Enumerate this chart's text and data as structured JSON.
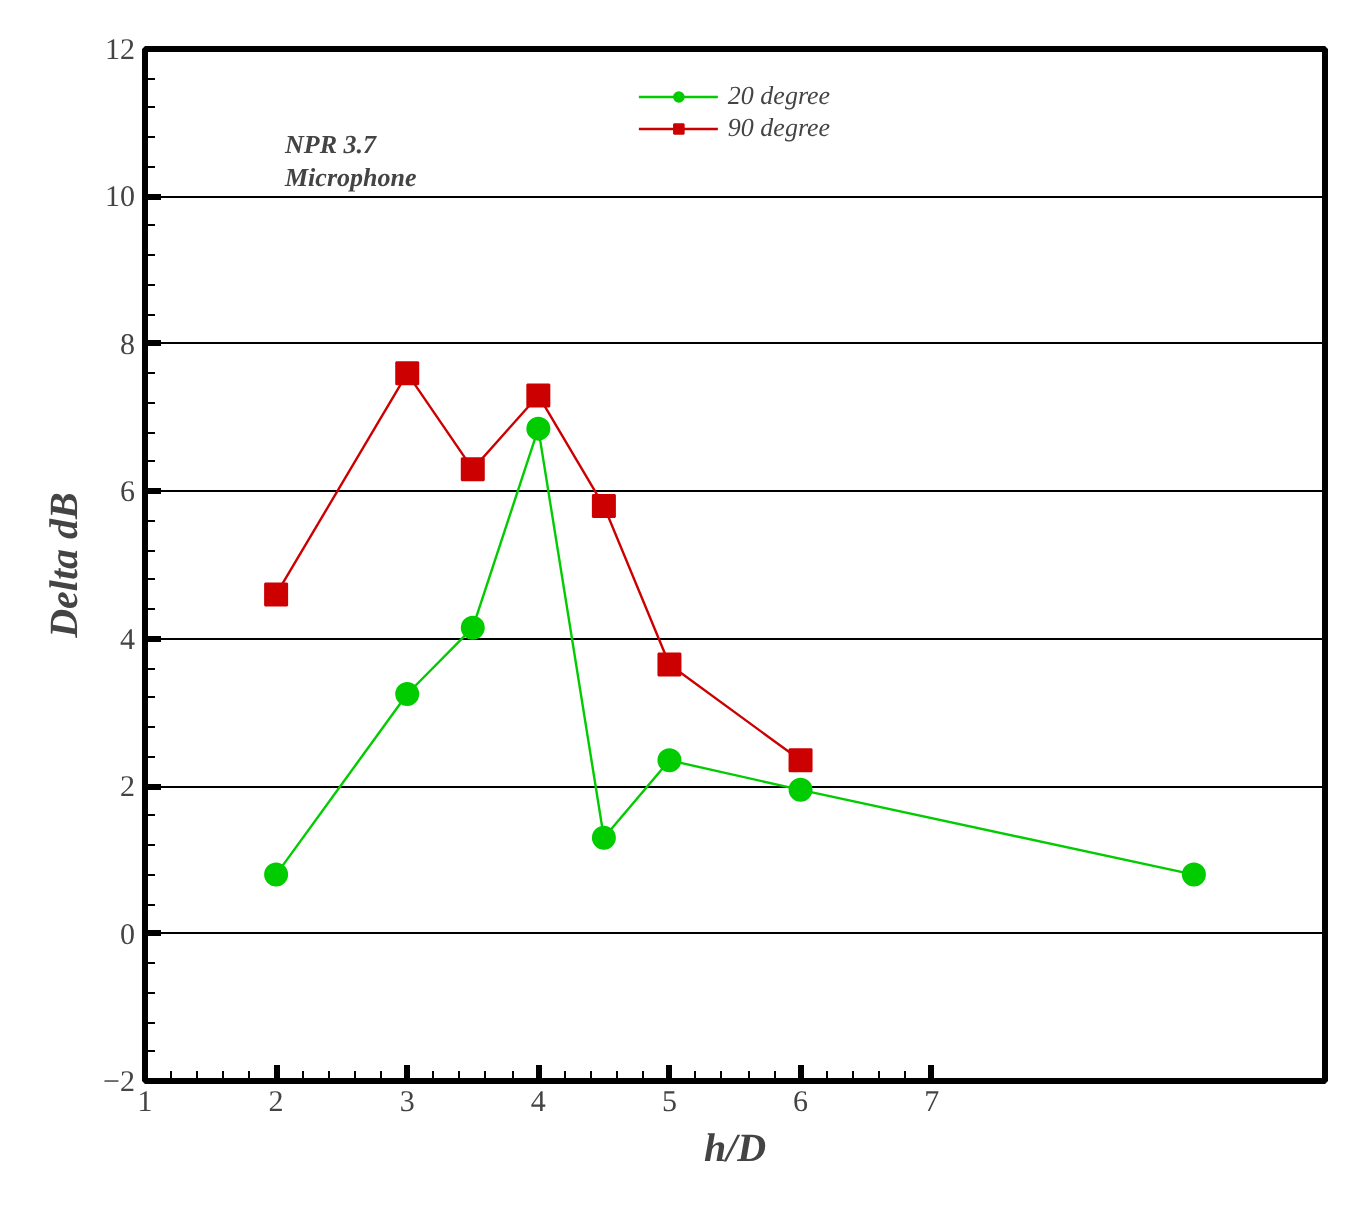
{
  "chart_data": [
    {
      "type": "line",
      "xlabel": "h/D",
      "ylabel": "Delta dB",
      "annotations": [
        "NPR 3.7\nMicrophone"
      ],
      "xlim": [
        1,
        10
      ],
      "xticks": [
        1,
        2,
        3,
        4,
        5,
        6,
        7
      ],
      "ylim": [
        -2,
        12
      ],
      "yticks": [
        -2,
        0,
        2,
        4,
        6,
        8,
        10,
        12
      ],
      "grid": "y",
      "legend": "top",
      "line_style": "solid",
      "x": [
        2,
        3,
        3.5,
        4,
        4.5,
        5,
        6,
        9
      ],
      "series": [
        {
          "name": "20 degree",
          "color": "#00cc00",
          "marker": "circle",
          "values": [
            0.8,
            3.25,
            4.15,
            6.85,
            1.3,
            2.35,
            1.95,
            0.8
          ]
        },
        {
          "name": "90 degree",
          "color": "#cc0000",
          "marker": "square",
          "values": [
            4.6,
            7.6,
            6.3,
            7.3,
            5.8,
            3.65,
            2.35,
            null
          ]
        }
      ]
    }
  ]
}
